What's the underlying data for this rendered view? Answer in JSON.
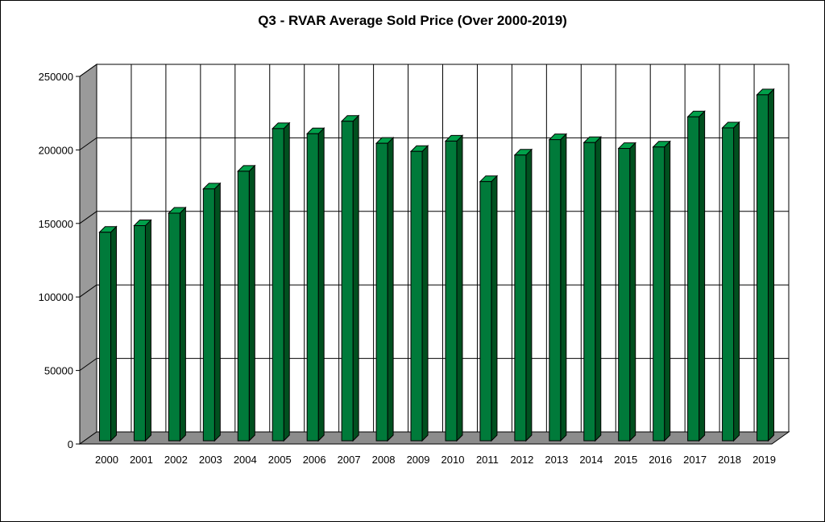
{
  "chart_data": {
    "type": "bar",
    "title": "Q3 - RVAR Average Sold Price (Over 2000-2019)",
    "xlabel": "",
    "ylabel": "",
    "categories": [
      "2000",
      "2001",
      "2002",
      "2003",
      "2004",
      "2005",
      "2006",
      "2007",
      "2008",
      "2009",
      "2010",
      "2011",
      "2012",
      "2013",
      "2014",
      "2015",
      "2016",
      "2017",
      "2018",
      "2019"
    ],
    "values": [
      144000,
      148500,
      157000,
      173500,
      185500,
      214500,
      211000,
      219500,
      204500,
      199000,
      206000,
      178500,
      196500,
      207000,
      205000,
      201000,
      202000,
      222500,
      215000,
      237500
    ],
    "yticks": [
      0,
      50000,
      100000,
      150000,
      200000,
      250000
    ],
    "ylim": [
      0,
      250000
    ],
    "grid": true,
    "style": "3d",
    "colors": {
      "bar_front": "#007a3a",
      "bar_top": "#00a04a",
      "bar_side": "#00501f",
      "wall": "#ffffff",
      "left_wall": "#9a9a9a",
      "floor": "#8c8c8c",
      "grid": "#000000"
    }
  }
}
